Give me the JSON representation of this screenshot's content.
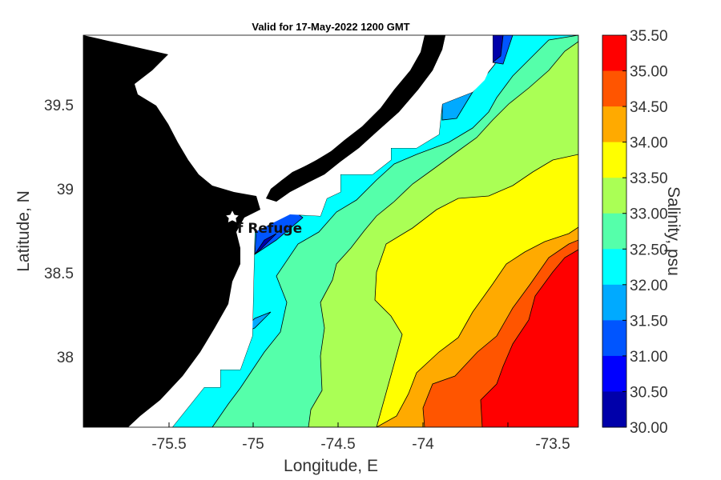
{
  "title": "Valid for 17-May-2022 1200 GMT",
  "x_axis": {
    "label": "Longitude, E",
    "ticks": [
      "-75.5",
      "-75",
      "-74.5",
      "-74",
      "-73.5"
    ]
  },
  "y_axis": {
    "label": "Latitude, N",
    "ticks": [
      "39.5",
      "39",
      "38.5",
      "38"
    ]
  },
  "marker": {
    "label": "f Refuge",
    "icon": "star-icon"
  },
  "colorbar": {
    "label": "Salinity, psu",
    "ticks": [
      "35.50",
      "35.00",
      "34.50",
      "34.00",
      "33.50",
      "33.00",
      "32.50",
      "32.00",
      "31.50",
      "31.00",
      "30.50",
      "30.00"
    ],
    "colors": [
      "#ff0000",
      "#ff5500",
      "#ffaa00",
      "#ffff00",
      "#aaff55",
      "#55ffaa",
      "#00ffff",
      "#00aaff",
      "#0055ff",
      "#0000ff",
      "#0000aa"
    ]
  },
  "colors": {
    "land": "#000000",
    "no_data": "#ffffff",
    "contour_line": "#000000"
  }
}
